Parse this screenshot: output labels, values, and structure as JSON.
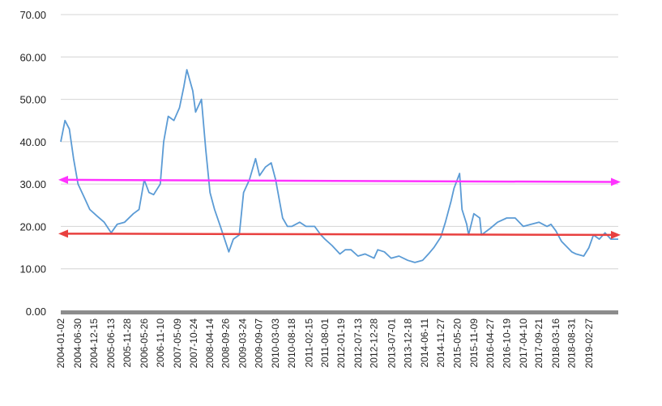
{
  "chart_data": {
    "type": "line",
    "title": "",
    "xlabel": "",
    "ylabel": "",
    "ylim": [
      0,
      70
    ],
    "ytick_labels": [
      "0.00",
      "10.00",
      "20.00",
      "30.00",
      "40.00",
      "50.00",
      "60.00",
      "70.00"
    ],
    "yticks": [
      0,
      10,
      20,
      30,
      40,
      50,
      60,
      70
    ],
    "xlim": [
      "2004-01-02",
      "2019-12-31"
    ],
    "xtick_labels": [
      "2004-01-02",
      "2004-06-30",
      "2004-12-15",
      "2005-06-13",
      "2005-11-28",
      "2006-05-26",
      "2006-11-10",
      "2007-05-09",
      "2007-10-24",
      "2008-04-14",
      "2008-09-26",
      "2009-03-24",
      "2009-09-07",
      "2010-03-03",
      "2010-08-18",
      "2011-02-15",
      "2011-08-01",
      "2012-01-19",
      "2012-07-13",
      "2012-12-28",
      "2013-07-01",
      "2013-12-18",
      "2014-06-11",
      "2014-11-27",
      "2015-05-20",
      "2015-11-09",
      "2016-04-27",
      "2016-10-19",
      "2017-04-10",
      "2017-09-21",
      "2018-03-16",
      "2018-08-31",
      "2019-02-27"
    ],
    "grid": "horizontal",
    "series": [
      {
        "color": "#5b9bd5",
        "x": [
          "2004-01-02",
          "2004-02-15",
          "2004-04-01",
          "2004-05-15",
          "2004-07-01",
          "2004-09-01",
          "2004-11-01",
          "2005-01-15",
          "2005-04-01",
          "2005-06-13",
          "2005-08-15",
          "2005-11-01",
          "2006-02-01",
          "2006-04-01",
          "2006-05-26",
          "2006-07-15",
          "2006-09-01",
          "2006-11-10",
          "2006-12-15",
          "2007-02-01",
          "2007-04-01",
          "2007-05-30",
          "2007-07-15",
          "2007-08-15",
          "2007-10-16",
          "2007-11-15",
          "2008-01-15",
          "2008-03-01",
          "2008-04-14",
          "2008-06-01",
          "2008-08-01",
          "2008-10-28",
          "2008-12-15",
          "2009-02-15",
          "2009-04-01",
          "2009-06-01",
          "2009-08-04",
          "2009-09-15",
          "2009-11-15",
          "2010-01-15",
          "2010-03-03",
          "2010-05-15",
          "2010-07-05",
          "2010-08-18",
          "2010-11-10",
          "2011-01-15",
          "2011-04-15",
          "2011-06-20",
          "2011-08-01",
          "2011-10-15",
          "2012-01-05",
          "2012-03-01",
          "2012-05-01",
          "2012-07-13",
          "2012-09-25",
          "2012-12-28",
          "2013-02-05",
          "2013-04-15",
          "2013-06-25",
          "2013-09-15",
          "2013-12-18",
          "2014-03-01",
          "2014-05-20",
          "2014-07-21",
          "2014-09-15",
          "2014-11-27",
          "2015-01-15",
          "2015-03-15",
          "2015-04-15",
          "2015-06-12",
          "2015-07-08",
          "2015-08-26",
          "2015-09-15",
          "2015-11-09",
          "2016-01-10",
          "2016-01-28",
          "2016-04-27",
          "2016-07-15",
          "2016-10-19",
          "2017-01-15",
          "2017-04-10",
          "2017-07-01",
          "2017-09-21",
          "2017-12-15",
          "2018-01-25",
          "2018-03-16",
          "2018-05-15",
          "2018-08-31",
          "2018-10-15",
          "2019-01-03",
          "2019-02-27",
          "2019-04-15",
          "2019-06-15",
          "2019-08-15",
          "2019-10-15",
          "2019-12-31"
        ],
        "values": [
          40.0,
          45.0,
          43.0,
          36.0,
          30.0,
          27.0,
          24.0,
          22.5,
          21.0,
          18.5,
          20.5,
          21.0,
          23.0,
          24.0,
          31.0,
          28.0,
          27.5,
          30.0,
          40.0,
          46.0,
          45.0,
          48.0,
          53.0,
          57.0,
          52.0,
          47.0,
          50.0,
          38.0,
          28.0,
          24.0,
          20.0,
          14.0,
          17.0,
          18.0,
          28.0,
          31.0,
          36.0,
          32.0,
          34.0,
          35.0,
          31.0,
          22.0,
          20.0,
          20.0,
          21.0,
          20.0,
          20.0,
          18.0,
          17.0,
          15.5,
          13.5,
          14.5,
          14.5,
          13.0,
          13.5,
          12.5,
          14.5,
          14.0,
          12.5,
          13.0,
          12.0,
          11.5,
          12.0,
          13.5,
          15.0,
          17.5,
          21.0,
          26.0,
          29.0,
          32.5,
          24.0,
          20.5,
          18.0,
          23.0,
          22.0,
          18.0,
          19.5,
          21.0,
          22.0,
          22.0,
          20.0,
          20.5,
          21.0,
          20.0,
          20.5,
          19.0,
          16.5,
          14.0,
          13.5,
          13.0,
          15.0,
          18.0,
          17.0,
          18.5,
          17.0,
          17.0
        ]
      }
    ],
    "reference_lines": [
      {
        "color": "#ff33ff",
        "values": [
          31.0,
          30.5
        ],
        "arrows": "both"
      },
      {
        "color": "#e8403f",
        "values": [
          18.3,
          18.0
        ],
        "arrows": "both"
      }
    ]
  }
}
